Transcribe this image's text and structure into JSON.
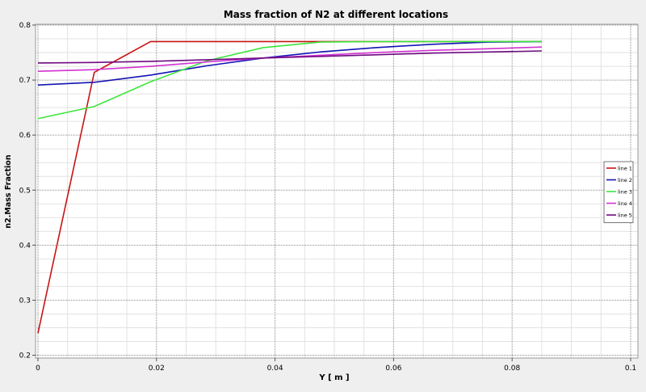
{
  "chart_data": {
    "type": "line",
    "title": "Mass fraction of N2 at different locations",
    "xlabel": "Y [ m ]",
    "ylabel": "n2.Mass Fraction",
    "xlim": [
      0,
      0.1
    ],
    "ylim": [
      0.2,
      0.8
    ],
    "x_ticks": [
      0,
      0.02,
      0.04,
      0.06,
      0.08,
      0.1
    ],
    "x_tick_labels": [
      "0",
      "0.02",
      "0.04",
      "0.06",
      "0.08",
      "0.1"
    ],
    "y_ticks": [
      0.2,
      0.3,
      0.4,
      0.5,
      0.6,
      0.7,
      0.8
    ],
    "y_tick_labels": [
      "0.2",
      "0.3",
      "0.4",
      "0.5",
      "0.6",
      "0.7",
      "0.8"
    ],
    "grid": true,
    "legend_position": "right",
    "background_color": "#efefef",
    "plot_background_color": "#ffffff",
    "series": [
      {
        "name": "line 1",
        "color": "#c81414",
        "x": [
          0,
          0.0095,
          0.019,
          0.0285,
          0.038,
          0.0475,
          0.057,
          0.0665,
          0.076,
          0.085
        ],
        "y": [
          0.24,
          0.714,
          0.77,
          0.77,
          0.77,
          0.77,
          0.77,
          0.77,
          0.77,
          0.77
        ]
      },
      {
        "name": "line 2",
        "color": "#1414b4",
        "x": [
          0,
          0.0095,
          0.019,
          0.0285,
          0.038,
          0.0475,
          0.057,
          0.0665,
          0.076,
          0.085
        ],
        "y": [
          0.691,
          0.696,
          0.709,
          0.726,
          0.74,
          0.751,
          0.759,
          0.765,
          0.769,
          0.77
        ]
      },
      {
        "name": "line 3",
        "color": "#3ce63c",
        "x": [
          0,
          0.0095,
          0.019,
          0.0285,
          0.038,
          0.0475,
          0.057,
          0.0665,
          0.076,
          0.085
        ],
        "y": [
          0.63,
          0.652,
          0.697,
          0.735,
          0.759,
          0.769,
          0.77,
          0.77,
          0.77,
          0.77
        ]
      },
      {
        "name": "line 4",
        "color": "#d232d2",
        "x": [
          0,
          0.0095,
          0.019,
          0.0285,
          0.038,
          0.0475,
          0.057,
          0.0665,
          0.076,
          0.085
        ],
        "y": [
          0.716,
          0.719,
          0.725,
          0.733,
          0.74,
          0.745,
          0.75,
          0.754,
          0.757,
          0.76
        ]
      },
      {
        "name": "line 5",
        "color": "#6e0a82",
        "x": [
          0,
          0.0095,
          0.019,
          0.0285,
          0.038,
          0.0475,
          0.057,
          0.0665,
          0.076,
          0.085
        ],
        "y": [
          0.731,
          0.732,
          0.734,
          0.737,
          0.74,
          0.743,
          0.746,
          0.749,
          0.751,
          0.753
        ]
      }
    ]
  }
}
